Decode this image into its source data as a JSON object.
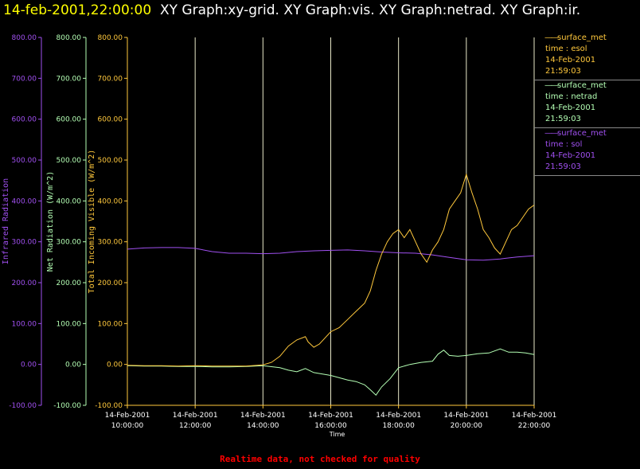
{
  "header": {
    "timestamp": "14-feb-2001,22:00:00",
    "graphs": "XY Graph:xy-grid.  XY Graph:vis.  XY Graph:netrad.  XY Graph:ir."
  },
  "footer": {
    "note": "Realtime data, not checked for quality"
  },
  "legend": [
    {
      "name": "surface_met",
      "time_label": "time : esol",
      "date": "14-Feb-2001",
      "time": "21:59:03",
      "color": "#ffc83c"
    },
    {
      "name": "surface_met",
      "time_label": "time : netrad",
      "date": "14-Feb-2001",
      "time": "21:59:03",
      "color": "#b4ffb4"
    },
    {
      "name": "surface_met",
      "time_label": "time : sol",
      "date": "14-Feb-2001",
      "time": "21:59:03",
      "color": "#a050f0"
    }
  ],
  "chart_data": {
    "type": "line",
    "xlabel": "Time",
    "x_ticks": [
      {
        "date": "14-Feb-2001",
        "time": "10:00:00"
      },
      {
        "date": "14-Feb-2001",
        "time": "12:00:00"
      },
      {
        "date": "14-Feb-2001",
        "time": "14:00:00"
      },
      {
        "date": "14-Feb-2001",
        "time": "16:00:00"
      },
      {
        "date": "14-Feb-2001",
        "time": "18:00:00"
      },
      {
        "date": "14-Feb-2001",
        "time": "20:00:00"
      },
      {
        "date": "14-Feb-2001",
        "time": "22:00:00"
      }
    ],
    "xlim": [
      "10:00",
      "22:00"
    ],
    "ylim": [
      -100,
      800
    ],
    "y_ticks": [
      "-100.00",
      "0.00",
      "100.00",
      "200.00",
      "300.00",
      "400.00",
      "500.00",
      "600.00",
      "700.00",
      "800.00"
    ],
    "vertical_grid": true,
    "axes": [
      {
        "label": "Infrared Radiation",
        "color": "#a050f0"
      },
      {
        "label": "Net Radiation (W/m^2)",
        "color": "#b4ffb4"
      },
      {
        "label": "Total Incoming Visible (W/m^2)",
        "color": "#ffc83c"
      }
    ],
    "series": [
      {
        "color": "#a050f0",
        "points": [
          [
            "10:00",
            282
          ],
          [
            "10:30",
            285
          ],
          [
            "11:00",
            286
          ],
          [
            "11:30",
            286
          ],
          [
            "12:00",
            284
          ],
          [
            "12:30",
            276
          ],
          [
            "13:00",
            272
          ],
          [
            "13:30",
            272
          ],
          [
            "14:00",
            271
          ],
          [
            "14:30",
            272
          ],
          [
            "15:00",
            276
          ],
          [
            "15:30",
            278
          ],
          [
            "16:00",
            279
          ],
          [
            "16:30",
            280
          ],
          [
            "17:00",
            278
          ],
          [
            "17:30",
            275
          ],
          [
            "18:00",
            273
          ],
          [
            "18:30",
            272
          ],
          [
            "19:00",
            268
          ],
          [
            "19:30",
            262
          ],
          [
            "20:00",
            256
          ],
          [
            "20:30",
            255
          ],
          [
            "21:00",
            258
          ],
          [
            "21:30",
            263
          ],
          [
            "22:00",
            266
          ]
        ]
      },
      {
        "color": "#b4ffb4",
        "points": [
          [
            "10:00",
            -3
          ],
          [
            "10:30",
            -4
          ],
          [
            "11:00",
            -4
          ],
          [
            "11:30",
            -5
          ],
          [
            "12:00",
            -5
          ],
          [
            "12:30",
            -6
          ],
          [
            "13:00",
            -6
          ],
          [
            "13:30",
            -5
          ],
          [
            "14:00",
            -3
          ],
          [
            "14:30",
            -8
          ],
          [
            "14:45",
            -14
          ],
          [
            "15:00",
            -18
          ],
          [
            "15:15",
            -10
          ],
          [
            "15:30",
            -20
          ],
          [
            "16:00",
            -27
          ],
          [
            "16:30",
            -38
          ],
          [
            "16:45",
            -42
          ],
          [
            "17:00",
            -50
          ],
          [
            "17:10",
            -62
          ],
          [
            "17:20",
            -75
          ],
          [
            "17:30",
            -55
          ],
          [
            "17:45",
            -35
          ],
          [
            "18:00",
            -8
          ],
          [
            "18:20",
            0
          ],
          [
            "18:40",
            5
          ],
          [
            "19:00",
            8
          ],
          [
            "19:10",
            25
          ],
          [
            "19:20",
            35
          ],
          [
            "19:30",
            22
          ],
          [
            "19:45",
            20
          ],
          [
            "20:00",
            22
          ],
          [
            "20:20",
            26
          ],
          [
            "20:40",
            28
          ],
          [
            "21:00",
            38
          ],
          [
            "21:15",
            30
          ],
          [
            "21:30",
            30
          ],
          [
            "21:45",
            28
          ],
          [
            "22:00",
            24
          ]
        ]
      },
      {
        "color": "#ffc83c",
        "points": [
          [
            "10:00",
            -2
          ],
          [
            "10:30",
            -3
          ],
          [
            "11:00",
            -3
          ],
          [
            "11:30",
            -4
          ],
          [
            "12:00",
            -3
          ],
          [
            "12:30",
            -4
          ],
          [
            "13:00",
            -4
          ],
          [
            "13:30",
            -4
          ],
          [
            "14:00",
            -1
          ],
          [
            "14:15",
            5
          ],
          [
            "14:30",
            20
          ],
          [
            "14:45",
            45
          ],
          [
            "15:00",
            60
          ],
          [
            "15:15",
            68
          ],
          [
            "15:20",
            55
          ],
          [
            "15:30",
            42
          ],
          [
            "15:40",
            50
          ],
          [
            "15:50",
            65
          ],
          [
            "16:00",
            80
          ],
          [
            "16:15",
            90
          ],
          [
            "16:30",
            110
          ],
          [
            "16:45",
            130
          ],
          [
            "17:00",
            150
          ],
          [
            "17:10",
            180
          ],
          [
            "17:20",
            230
          ],
          [
            "17:30",
            270
          ],
          [
            "17:40",
            300
          ],
          [
            "17:50",
            320
          ],
          [
            "18:00",
            330
          ],
          [
            "18:10",
            310
          ],
          [
            "18:20",
            330
          ],
          [
            "18:30",
            300
          ],
          [
            "18:40",
            270
          ],
          [
            "18:50",
            250
          ],
          [
            "19:00",
            280
          ],
          [
            "19:10",
            300
          ],
          [
            "19:20",
            330
          ],
          [
            "19:30",
            380
          ],
          [
            "19:40",
            400
          ],
          [
            "19:50",
            420
          ],
          [
            "20:00",
            465
          ],
          [
            "20:10",
            420
          ],
          [
            "20:20",
            380
          ],
          [
            "20:30",
            330
          ],
          [
            "20:40",
            310
          ],
          [
            "20:50",
            285
          ],
          [
            "21:00",
            270
          ],
          [
            "21:10",
            300
          ],
          [
            "21:20",
            330
          ],
          [
            "21:30",
            340
          ],
          [
            "21:40",
            360
          ],
          [
            "21:50",
            380
          ],
          [
            "22:00",
            390
          ]
        ]
      }
    ]
  }
}
